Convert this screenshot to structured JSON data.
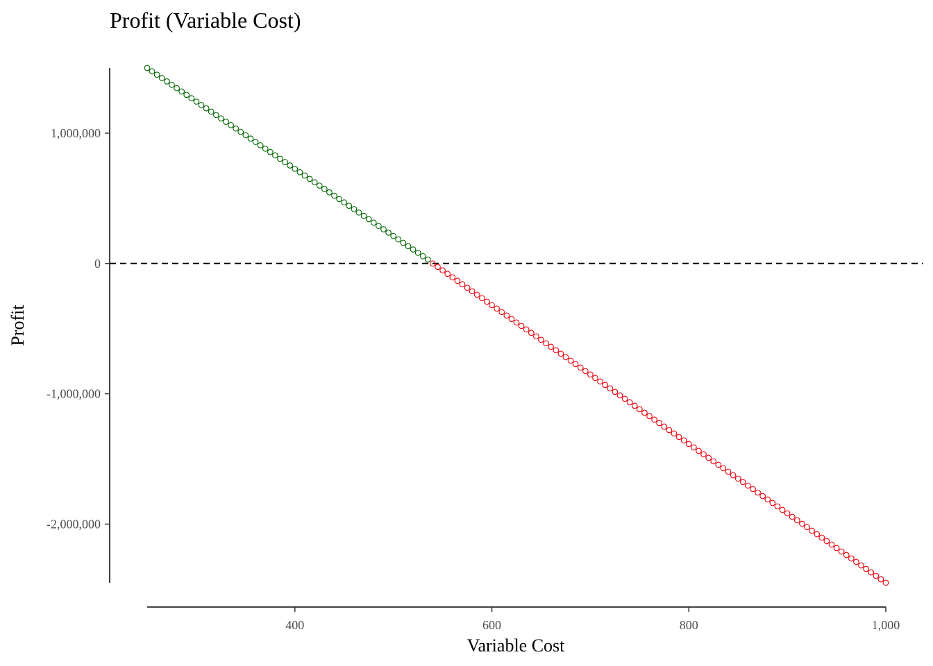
{
  "chart_data": {
    "type": "scatter",
    "title": "Profit (Variable Cost)",
    "xlabel": "Variable Cost",
    "ylabel": "Profit",
    "xlim": [
      250,
      1000
    ],
    "ylim": [
      -2450000,
      1500000
    ],
    "x_ticks": [
      400,
      600,
      800,
      1000
    ],
    "x_tick_labels": [
      "400",
      "600",
      "800",
      "1,000"
    ],
    "y_ticks": [
      1000000,
      0,
      -1000000,
      -2000000
    ],
    "y_tick_labels": [
      "1,000,000",
      "0",
      "-1,000,000",
      "-2,000,000"
    ],
    "grid": false,
    "reference_line": {
      "y": 0,
      "style": "dashed",
      "color": "#000000"
    },
    "series": [
      {
        "marker": "open-circle",
        "color": "#006400",
        "x_start": 250,
        "x_end": 535,
        "x_step": 5,
        "y_at_start": 1500000,
        "y_at_end": 30000
      },
      {
        "marker": "open-circle",
        "color": "#e8000b",
        "x_start": 540,
        "x_end": 1000,
        "x_step": 5,
        "y_at_start": 0,
        "y_at_end": -2450000
      }
    ]
  }
}
